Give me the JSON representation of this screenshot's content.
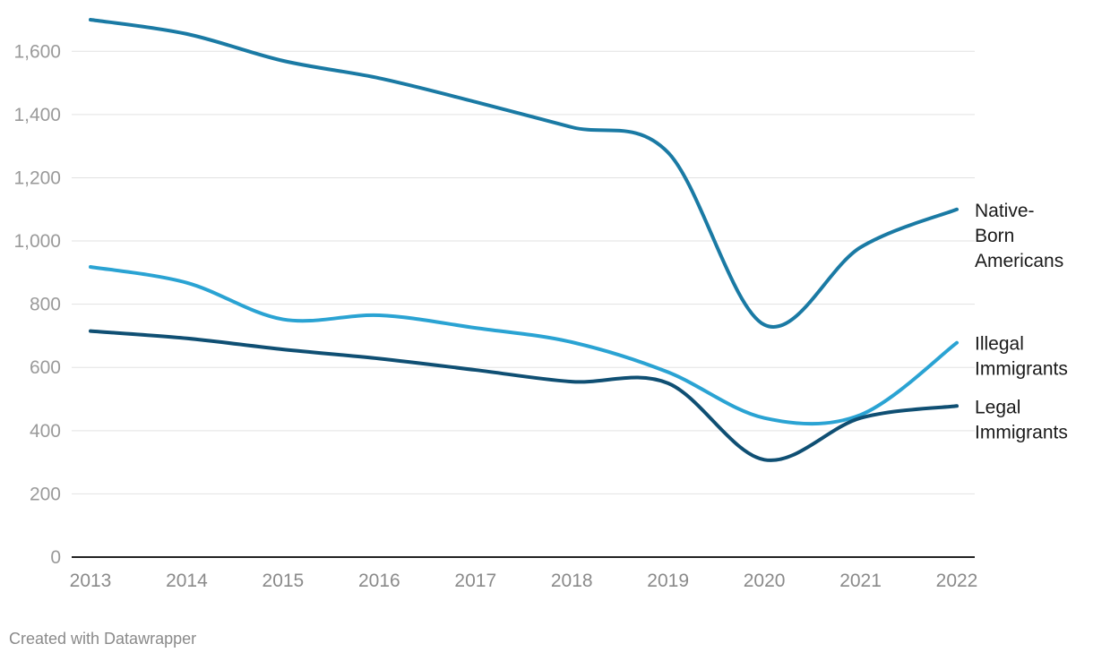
{
  "chart_data": {
    "type": "line",
    "x": [
      2013,
      2014,
      2015,
      2016,
      2017,
      2018,
      2019,
      2020,
      2021,
      2022
    ],
    "ylim": [
      0,
      1700
    ],
    "yticks": [
      0,
      200,
      400,
      600,
      800,
      1000,
      1200,
      1400,
      1600
    ],
    "ytick_labels": [
      "0",
      "200",
      "400",
      "600",
      "800",
      "1,000",
      "1,200",
      "1,400",
      "1,600"
    ],
    "xtick_labels": [
      "2013",
      "2014",
      "2015",
      "2016",
      "2017",
      "2018",
      "2019",
      "2020",
      "2021",
      "2022"
    ],
    "grid": true,
    "series": [
      {
        "name": "Native-Born Americans",
        "label_lines": [
          "Native-",
          "Born",
          "Americans"
        ],
        "color": "#1a7aa4",
        "values": [
          1700,
          1655,
          1570,
          1515,
          1440,
          1360,
          1280,
          735,
          980,
          1100
        ]
      },
      {
        "name": "Illegal Immigrants",
        "label_lines": [
          "Illegal",
          "Immigrants"
        ],
        "color": "#2aa3d3",
        "values": [
          918,
          868,
          752,
          765,
          725,
          680,
          585,
          440,
          450,
          678
        ]
      },
      {
        "name": "Legal Immigrants",
        "label_lines": [
          "Legal",
          "Immigrants"
        ],
        "color": "#0f4f73",
        "values": [
          715,
          692,
          657,
          628,
          592,
          555,
          550,
          308,
          440,
          478
        ]
      }
    ]
  },
  "footer": {
    "credit": "Created with Datawrapper"
  }
}
